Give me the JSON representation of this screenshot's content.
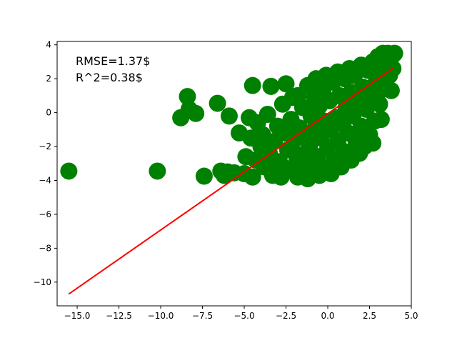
{
  "chart_data": {
    "type": "scatter",
    "title": "",
    "xlabel": "",
    "ylabel": "",
    "xlim": [
      -16.2,
      5.0
    ],
    "ylim": [
      -11.4,
      4.2
    ],
    "grid": false,
    "x_ticks": [
      -15.0,
      -12.5,
      -10.0,
      -7.5,
      -5.0,
      -2.5,
      0.0,
      2.5,
      5.0
    ],
    "x_tick_labels": [
      "−15.0",
      "−12.5",
      "−10.0",
      "−7.5",
      "−5.0",
      "−2.5",
      "0.0",
      "2.5",
      "5.0"
    ],
    "y_ticks": [
      4,
      2,
      0,
      -2,
      -4,
      -6,
      -8,
      -10
    ],
    "y_tick_labels": [
      "4",
      "2",
      "0",
      "−2",
      "−4",
      "−6",
      "−8",
      "−10"
    ],
    "annotations": [
      "RMSE=1.37$",
      "R^2=0.38$"
    ],
    "series": [
      {
        "type": "scatter",
        "color": "#008000",
        "points": [
          [
            -15.5,
            -3.45
          ],
          [
            -10.2,
            -3.45
          ],
          [
            -8.8,
            -0.3
          ],
          [
            -8.4,
            0.95
          ],
          [
            -8.3,
            0.2
          ],
          [
            -7.9,
            -0.05
          ],
          [
            -7.4,
            -3.75
          ],
          [
            -6.6,
            0.55
          ],
          [
            -6.4,
            -3.45
          ],
          [
            -6.2,
            -3.7
          ],
          [
            -6.0,
            -3.5
          ],
          [
            -5.9,
            -0.2
          ],
          [
            -5.6,
            -3.55
          ],
          [
            -5.3,
            -1.2
          ],
          [
            -5.0,
            -3.6
          ],
          [
            -4.9,
            -2.6
          ],
          [
            -4.7,
            -0.3
          ],
          [
            -4.6,
            -1.5
          ],
          [
            -4.5,
            -3.8
          ],
          [
            -4.5,
            1.6
          ],
          [
            -4.3,
            -2.8
          ],
          [
            -4.2,
            -0.6
          ],
          [
            -4.0,
            -2.0
          ],
          [
            -3.9,
            -1.3
          ],
          [
            -3.8,
            -3.2
          ],
          [
            -3.6,
            -0.1
          ],
          [
            -3.5,
            -2.4
          ],
          [
            -3.4,
            1.55
          ],
          [
            -3.3,
            -3.7
          ],
          [
            -3.2,
            -1.7
          ],
          [
            -3.0,
            -0.8
          ],
          [
            -2.9,
            -2.9
          ],
          [
            -2.8,
            -3.8
          ],
          [
            -2.7,
            0.5
          ],
          [
            -2.6,
            -1.2
          ],
          [
            -2.5,
            1.7
          ],
          [
            -2.4,
            -2.2
          ],
          [
            -2.3,
            -3.4
          ],
          [
            -2.2,
            -0.4
          ],
          [
            -2.1,
            0.9
          ],
          [
            -2.0,
            -1.6
          ],
          [
            -1.9,
            -3.0
          ],
          [
            -1.8,
            -3.8
          ],
          [
            -1.8,
            1.0
          ],
          [
            -1.7,
            -0.9
          ],
          [
            -1.6,
            -2.5
          ],
          [
            -1.5,
            0.3
          ],
          [
            -1.4,
            -3.5
          ],
          [
            -1.3,
            -1.3
          ],
          [
            -1.2,
            -3.9
          ],
          [
            -1.2,
            1.6
          ],
          [
            -1.1,
            -2.0
          ],
          [
            -1.0,
            -0.2
          ],
          [
            -0.9,
            -3.1
          ],
          [
            -0.8,
            0.9
          ],
          [
            -0.8,
            -1.0
          ],
          [
            -0.7,
            2.0
          ],
          [
            -0.6,
            -2.6
          ],
          [
            -0.5,
            -3.7
          ],
          [
            -0.5,
            0.4
          ],
          [
            -0.4,
            -1.5
          ],
          [
            -0.3,
            1.3
          ],
          [
            -0.2,
            -0.5
          ],
          [
            -0.2,
            -3.3
          ],
          [
            -0.1,
            2.2
          ],
          [
            0.0,
            -2.1
          ],
          [
            0.1,
            0.7
          ],
          [
            0.2,
            -1.0
          ],
          [
            0.2,
            -3.6
          ],
          [
            0.3,
            1.8
          ],
          [
            0.4,
            -2.8
          ],
          [
            0.5,
            -0.3
          ],
          [
            0.6,
            2.4
          ],
          [
            0.6,
            -1.7
          ],
          [
            0.7,
            1.0
          ],
          [
            0.8,
            -3.2
          ],
          [
            0.9,
            -0.6
          ],
          [
            1.0,
            2.0
          ],
          [
            1.0,
            -2.3
          ],
          [
            1.1,
            0.3
          ],
          [
            1.2,
            -1.2
          ],
          [
            1.3,
            2.6
          ],
          [
            1.4,
            -2.8
          ],
          [
            1.4,
            1.2
          ],
          [
            1.5,
            -0.2
          ],
          [
            1.6,
            2.2
          ],
          [
            1.7,
            -1.7
          ],
          [
            1.8,
            0.6
          ],
          [
            1.9,
            -2.4
          ],
          [
            2.0,
            2.8
          ],
          [
            2.0,
            -0.8
          ],
          [
            2.1,
            1.5
          ],
          [
            2.2,
            -2.0
          ],
          [
            2.3,
            0.2
          ],
          [
            2.4,
            2.5
          ],
          [
            2.5,
            -1.3
          ],
          [
            2.6,
            1.0
          ],
          [
            2.7,
            3.0
          ],
          [
            2.8,
            -0.5
          ],
          [
            2.9,
            1.8
          ],
          [
            3.0,
            3.3
          ],
          [
            3.1,
            0.5
          ],
          [
            3.2,
            2.4
          ],
          [
            3.3,
            3.5
          ],
          [
            3.4,
            1.4
          ],
          [
            3.5,
            2.9
          ],
          [
            3.6,
            3.5
          ],
          [
            3.7,
            2.2
          ],
          [
            3.8,
            1.3
          ],
          [
            3.9,
            3.4
          ],
          [
            3.9,
            2.6
          ],
          [
            4.0,
            3.5
          ],
          [
            2.7,
            -1.8
          ],
          [
            3.2,
            -0.4
          ],
          [
            3.0,
            0.6
          ]
        ]
      },
      {
        "type": "line",
        "color": "#ff0000",
        "points": [
          [
            -15.5,
            -10.7
          ],
          [
            3.95,
            2.65
          ]
        ]
      }
    ]
  }
}
